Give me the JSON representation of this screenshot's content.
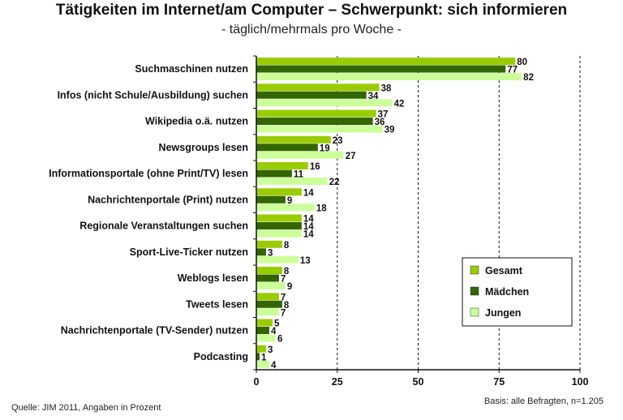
{
  "chart_data": {
    "type": "bar",
    "orientation": "horizontal",
    "title": "Tätigkeiten im Internet/am Computer – Schwerpunkt: sich informieren",
    "subtitle": "- täglich/mehrmals pro Woche -",
    "categories": [
      "Suchmaschinen nutzen",
      "Infos (nicht  Schule/Ausbildung) suchen",
      "Wikipedia o.ä. nutzen",
      "Newsgroups lesen",
      "Informationsportale (ohne Print/TV) lesen",
      "Nachrichtenportale (Print) nutzen",
      "Regionale Veranstaltungen suchen",
      "Sport-Live-Ticker nutzen",
      "Weblogs lesen",
      "Tweets lesen",
      "Nachrichtenportale (TV-Sender) nutzen",
      "Podcasting"
    ],
    "series": [
      {
        "name": "Gesamt",
        "color": "#99cc00",
        "values": [
          80,
          38,
          37,
          23,
          16,
          14,
          14,
          8,
          8,
          7,
          5,
          3
        ]
      },
      {
        "name": "Mädchen",
        "color": "#336600",
        "values": [
          77,
          34,
          36,
          19,
          11,
          9,
          14,
          3,
          7,
          8,
          4,
          1
        ]
      },
      {
        "name": "Jungen",
        "color": "#ccff99",
        "values": [
          82,
          42,
          39,
          27,
          22,
          18,
          14,
          13,
          9,
          7,
          6,
          4
        ]
      }
    ],
    "xlim": [
      0,
      100
    ],
    "xticks": [
      0,
      25,
      50,
      75,
      100
    ],
    "xtick_labels": [
      "0",
      "25",
      "50",
      "75",
      "100"
    ],
    "grid": "dashed vertical",
    "legend_position": "bottom-right"
  },
  "footer": {
    "source": "Quelle: JIM 2011, Angaben in Prozent",
    "basis": "Basis: alle Befragten, n=1.205"
  }
}
